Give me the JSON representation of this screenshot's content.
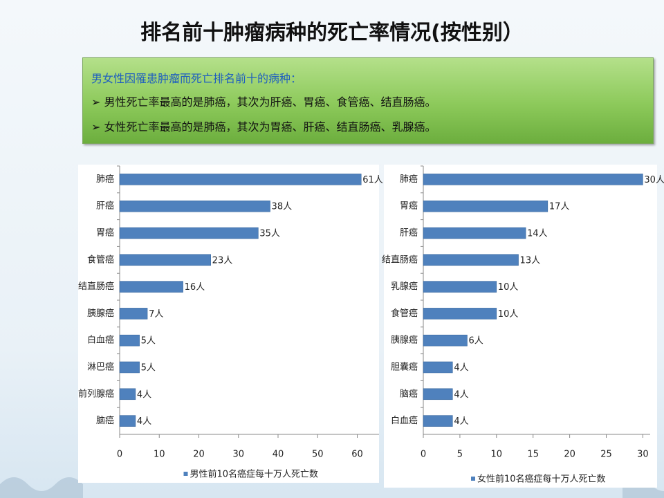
{
  "title": "排名前十肿瘤病种的死亡率情况(按性别）",
  "box": {
    "heading": "男女性因罹患肿瘤而死亡排名前十的病种：",
    "bullets": [
      "男性死亡率最高的是肺癌，其次为肝癌、胃癌、食管癌、结直肠癌。",
      "女性死亡率最高的是肺癌，其次为胃癌、肝癌、结直肠癌、乳腺癌。"
    ]
  },
  "chart_data": [
    {
      "type": "barh",
      "categories": [
        "肺癌",
        "肝癌",
        "胃癌",
        "食管癌",
        "结直肠癌",
        "胰腺癌",
        "白血癌",
        "淋巴癌",
        "前列腺癌",
        "脑癌"
      ],
      "series": [
        {
          "name": "男性前10名癌症每十万人死亡数",
          "color": "#4f81bd",
          "values": [
            61,
            38,
            35,
            23,
            16,
            7,
            5,
            5,
            4,
            4
          ],
          "value_labels": [
            "61人",
            "38人",
            "35人",
            "23人",
            "16人",
            "7人",
            "5人",
            "5人",
            "4人",
            "4人"
          ]
        }
      ],
      "xlim": [
        0,
        65.5
      ],
      "xticks": [
        0,
        10,
        20,
        30,
        40,
        50,
        60
      ],
      "legend": "bottom"
    },
    {
      "type": "barh",
      "categories": [
        "肺癌",
        "胃癌",
        "肝癌",
        "结直肠癌",
        "乳腺癌",
        "食管癌",
        "胰腺癌",
        "胆囊癌",
        "脑癌",
        "白血癌"
      ],
      "series": [
        {
          "name": "女性前10名癌症每十万人死亡数",
          "color": "#4f81bd",
          "values": [
            30,
            17,
            14,
            13,
            10,
            10,
            6,
            4,
            4,
            4
          ],
          "value_labels": [
            "30人",
            "17人",
            "14人",
            "13人",
            "10人",
            "10人",
            "6人",
            "4人",
            "4人",
            "4人"
          ]
        }
      ],
      "xlim": [
        0,
        31
      ],
      "xticks": [
        0,
        5,
        10,
        15,
        20,
        25,
        30
      ],
      "legend": "bottom"
    }
  ]
}
